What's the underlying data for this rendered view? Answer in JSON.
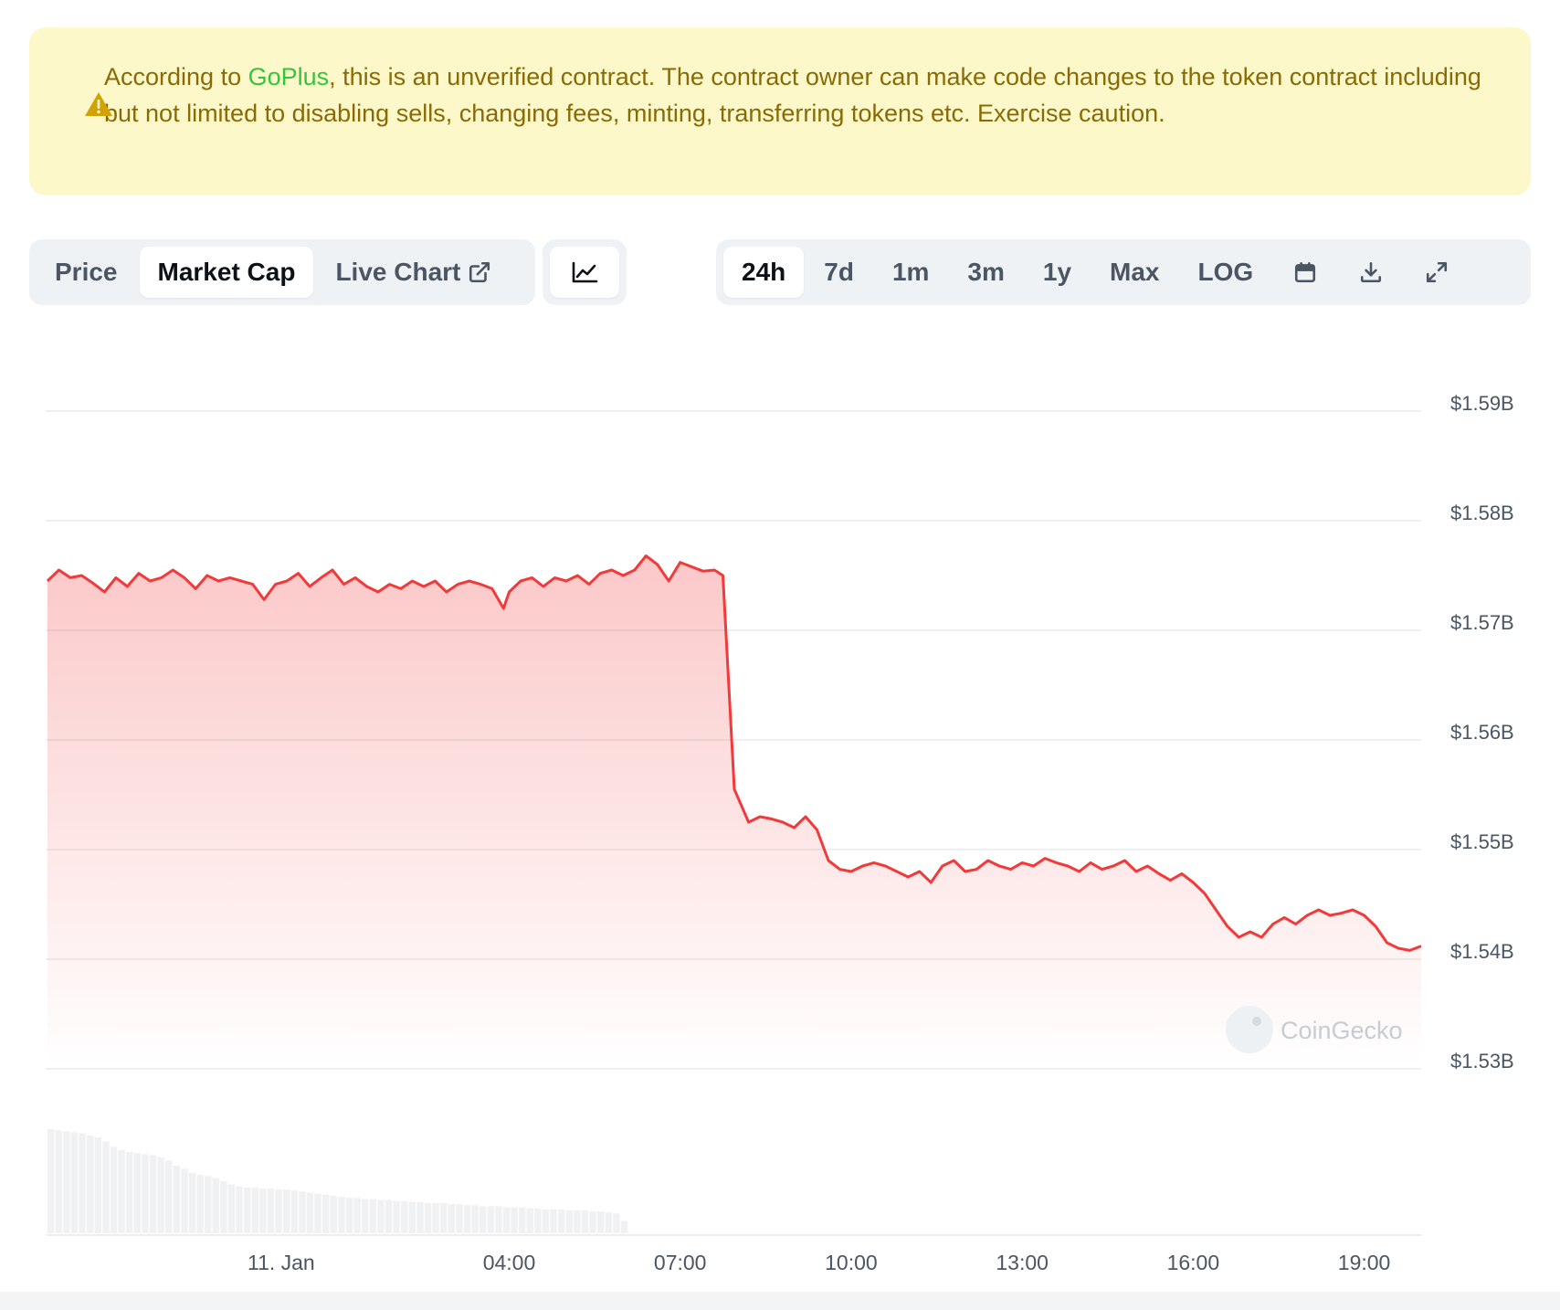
{
  "banner": {
    "prefix": "According to ",
    "link": "GoPlus",
    "suffix": ", this is an unverified contract. The contract owner can make code changes to the token contract including but not limited to disabling sells, changing fees, minting, transferring tokens etc. Exercise caution.",
    "icon": "warning-triangle-icon",
    "color": "#8a6a05",
    "background": "#fcf8c9",
    "link_color": "#35c53c"
  },
  "view_tabs": [
    {
      "label": "Price",
      "active": false
    },
    {
      "label": "Market Cap",
      "active": true
    },
    {
      "label": "Live Chart",
      "active": false,
      "icon": "external-link-icon"
    }
  ],
  "chart_type_icon": "line-chart-icon",
  "range_tabs": [
    {
      "label": "24h",
      "active": true
    },
    {
      "label": "7d",
      "active": false
    },
    {
      "label": "1m",
      "active": false
    },
    {
      "label": "3m",
      "active": false
    },
    {
      "label": "1y",
      "active": false
    },
    {
      "label": "Max",
      "active": false
    },
    {
      "label": "LOG",
      "active": false
    }
  ],
  "tool_icons": [
    "calendar-icon",
    "download-icon",
    "fullscreen-icon"
  ],
  "watermark": "CoinGecko",
  "chart_data": {
    "type": "area",
    "y_unit": "USD billions",
    "ylim": [
      1.53,
      1.59
    ],
    "yticks": [
      1.59,
      1.58,
      1.57,
      1.56,
      1.55,
      1.54,
      1.53
    ],
    "ytick_labels": [
      "$1.59B",
      "$1.58B",
      "$1.57B",
      "$1.56B",
      "$1.55B",
      "$1.54B",
      "$1.53B"
    ],
    "xtick_labels": [
      "11. Jan",
      "04:00",
      "07:00",
      "10:00",
      "13:00",
      "16:00",
      "19:00"
    ],
    "xtick_hours": [
      0,
      4,
      7,
      10,
      13,
      16,
      19
    ],
    "x_range_hours": [
      -4.1,
      20.0
    ],
    "grid": true,
    "line_color": "#f23a3a",
    "fill_color": "#f23a3a",
    "points": [
      [
        -4.1,
        1.5745
      ],
      [
        -3.9,
        1.5755
      ],
      [
        -3.7,
        1.5748
      ],
      [
        -3.5,
        1.575
      ],
      [
        -3.3,
        1.5743
      ],
      [
        -3.1,
        1.5735
      ],
      [
        -2.9,
        1.5748
      ],
      [
        -2.7,
        1.574
      ],
      [
        -2.5,
        1.5752
      ],
      [
        -2.3,
        1.5745
      ],
      [
        -2.1,
        1.5748
      ],
      [
        -1.9,
        1.5755
      ],
      [
        -1.7,
        1.5748
      ],
      [
        -1.5,
        1.5738
      ],
      [
        -1.3,
        1.575
      ],
      [
        -1.1,
        1.5745
      ],
      [
        -0.9,
        1.5748
      ],
      [
        -0.7,
        1.5745
      ],
      [
        -0.5,
        1.5742
      ],
      [
        -0.3,
        1.5728
      ],
      [
        -0.1,
        1.5742
      ],
      [
        0.1,
        1.5745
      ],
      [
        0.3,
        1.5752
      ],
      [
        0.5,
        1.574
      ],
      [
        0.7,
        1.5748
      ],
      [
        0.9,
        1.5755
      ],
      [
        1.1,
        1.5742
      ],
      [
        1.3,
        1.5748
      ],
      [
        1.5,
        1.574
      ],
      [
        1.7,
        1.5735
      ],
      [
        1.9,
        1.5742
      ],
      [
        2.1,
        1.5738
      ],
      [
        2.3,
        1.5745
      ],
      [
        2.5,
        1.574
      ],
      [
        2.7,
        1.5745
      ],
      [
        2.9,
        1.5735
      ],
      [
        3.1,
        1.5742
      ],
      [
        3.3,
        1.5745
      ],
      [
        3.5,
        1.5742
      ],
      [
        3.7,
        1.5738
      ],
      [
        3.9,
        1.572
      ],
      [
        4.0,
        1.5735
      ],
      [
        4.2,
        1.5745
      ],
      [
        4.4,
        1.5748
      ],
      [
        4.6,
        1.574
      ],
      [
        4.8,
        1.5748
      ],
      [
        5.0,
        1.5745
      ],
      [
        5.2,
        1.575
      ],
      [
        5.4,
        1.5742
      ],
      [
        5.6,
        1.5752
      ],
      [
        5.8,
        1.5755
      ],
      [
        6.0,
        1.575
      ],
      [
        6.2,
        1.5755
      ],
      [
        6.4,
        1.5768
      ],
      [
        6.6,
        1.576
      ],
      [
        6.8,
        1.5745
      ],
      [
        7.0,
        1.5762
      ],
      [
        7.2,
        1.5758
      ],
      [
        7.4,
        1.5754
      ],
      [
        7.6,
        1.5755
      ],
      [
        7.75,
        1.575
      ],
      [
        7.95,
        1.5555
      ],
      [
        8.2,
        1.5525
      ],
      [
        8.4,
        1.553
      ],
      [
        8.6,
        1.5528
      ],
      [
        8.8,
        1.5525
      ],
      [
        9.0,
        1.552
      ],
      [
        9.2,
        1.553
      ],
      [
        9.4,
        1.5518
      ],
      [
        9.6,
        1.549
      ],
      [
        9.8,
        1.5482
      ],
      [
        10.0,
        1.548
      ],
      [
        10.2,
        1.5485
      ],
      [
        10.4,
        1.5488
      ],
      [
        10.6,
        1.5485
      ],
      [
        10.8,
        1.548
      ],
      [
        11.0,
        1.5475
      ],
      [
        11.2,
        1.548
      ],
      [
        11.4,
        1.547
      ],
      [
        11.6,
        1.5485
      ],
      [
        11.8,
        1.549
      ],
      [
        12.0,
        1.548
      ],
      [
        12.2,
        1.5482
      ],
      [
        12.4,
        1.549
      ],
      [
        12.6,
        1.5485
      ],
      [
        12.8,
        1.5482
      ],
      [
        13.0,
        1.5488
      ],
      [
        13.2,
        1.5485
      ],
      [
        13.4,
        1.5492
      ],
      [
        13.6,
        1.5488
      ],
      [
        13.8,
        1.5485
      ],
      [
        14.0,
        1.548
      ],
      [
        14.2,
        1.5488
      ],
      [
        14.4,
        1.5482
      ],
      [
        14.6,
        1.5485
      ],
      [
        14.8,
        1.549
      ],
      [
        15.0,
        1.548
      ],
      [
        15.2,
        1.5485
      ],
      [
        15.4,
        1.5478
      ],
      [
        15.6,
        1.5472
      ],
      [
        15.8,
        1.5478
      ],
      [
        16.0,
        1.547
      ],
      [
        16.2,
        1.546
      ],
      [
        16.4,
        1.5445
      ],
      [
        16.6,
        1.543
      ],
      [
        16.8,
        1.542
      ],
      [
        17.0,
        1.5425
      ],
      [
        17.2,
        1.542
      ],
      [
        17.4,
        1.5432
      ],
      [
        17.6,
        1.5438
      ],
      [
        17.8,
        1.5432
      ],
      [
        18.0,
        1.544
      ],
      [
        18.2,
        1.5445
      ],
      [
        18.4,
        1.544
      ],
      [
        18.6,
        1.5442
      ],
      [
        18.8,
        1.5445
      ],
      [
        19.0,
        1.544
      ],
      [
        19.2,
        1.543
      ],
      [
        19.4,
        1.5415
      ],
      [
        19.6,
        1.541
      ],
      [
        19.8,
        1.5408
      ],
      [
        20.0,
        1.5412
      ]
    ],
    "volume_bars": {
      "y_scale": "relative, no axis printed",
      "values": [
        1.0,
        0.99,
        0.98,
        0.97,
        0.96,
        0.94,
        0.92,
        0.88,
        0.83,
        0.8,
        0.78,
        0.77,
        0.76,
        0.75,
        0.73,
        0.7,
        0.65,
        0.62,
        0.58,
        0.56,
        0.55,
        0.53,
        0.5,
        0.47,
        0.45,
        0.44,
        0.44,
        0.43,
        0.43,
        0.42,
        0.42,
        0.41,
        0.4,
        0.39,
        0.38,
        0.37,
        0.36,
        0.35,
        0.34,
        0.34,
        0.33,
        0.33,
        0.32,
        0.32,
        0.31,
        0.31,
        0.3,
        0.3,
        0.29,
        0.29,
        0.29,
        0.28,
        0.28,
        0.27,
        0.27,
        0.26,
        0.26,
        0.26,
        0.25,
        0.25,
        0.25,
        0.24,
        0.24,
        0.23,
        0.23,
        0.23,
        0.22,
        0.22,
        0.22,
        0.21,
        0.21,
        0.2,
        0.19,
        0.12
      ]
    }
  }
}
